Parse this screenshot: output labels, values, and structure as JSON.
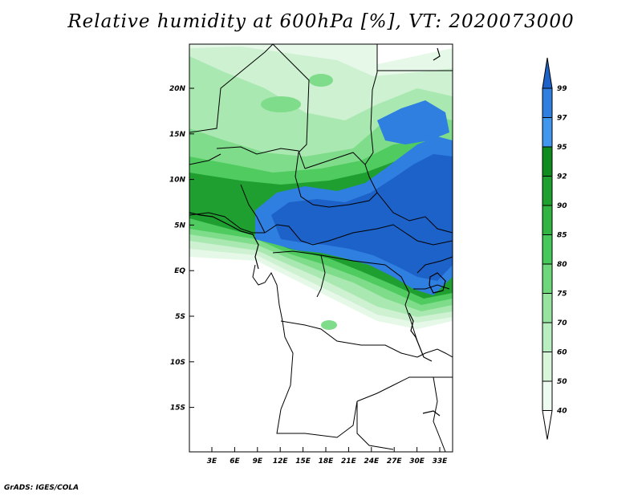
{
  "title": "Relative humidity at 600hPa [%], VT: 2020073000",
  "credit": "GrADS: IGES/COLA",
  "map": {
    "lat_labels": [
      "20N",
      "15N",
      "10N",
      "5N",
      "EQ",
      "5S",
      "10S",
      "15S"
    ],
    "lon_labels": [
      "3E",
      "6E",
      "9E",
      "12E",
      "15E",
      "18E",
      "21E",
      "24E",
      "27E",
      "30E",
      "33E"
    ]
  },
  "colorbar": {
    "labels": [
      "99",
      "97",
      "95",
      "92",
      "90",
      "85",
      "80",
      "75",
      "70",
      "60",
      "50",
      "40"
    ],
    "colors": [
      "#1c62c8",
      "#2f7fe0",
      "#4196ee",
      "#0f8c1e",
      "#1ea02f",
      "#32b442",
      "#46c85a",
      "#6ed77c",
      "#96e4a0",
      "#b9eec0",
      "#d7f6da",
      "#eefbf0",
      "#ffffff"
    ]
  }
}
